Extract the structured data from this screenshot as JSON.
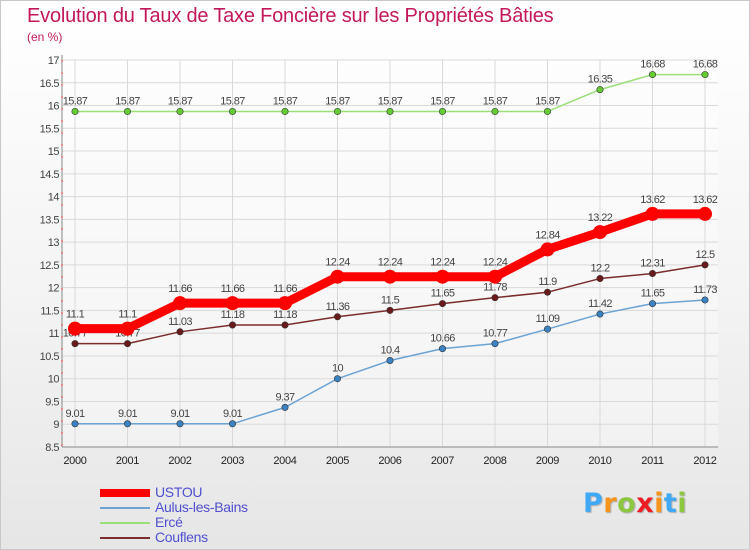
{
  "chart_data": {
    "type": "line",
    "title": "Evolution du Taux de Taxe Foncière sur les Propriétés Bâties",
    "subtitle": "(en %)",
    "x": [
      "2000",
      "2001",
      "2002",
      "2003",
      "2004",
      "2005",
      "2006",
      "2007",
      "2008",
      "2009",
      "2010",
      "2011",
      "2012"
    ],
    "ylim": [
      8.5,
      17
    ],
    "yticks": [
      "8.5",
      "9",
      "9.5",
      "10",
      "10.5",
      "11",
      "11.5",
      "12",
      "12.5",
      "13",
      "13.5",
      "14",
      "14.5",
      "15",
      "15.5",
      "16",
      "16.5",
      "17"
    ],
    "grid": true,
    "legend_position": "bottom-left",
    "series": [
      {
        "name": "USTOU",
        "color": "#ff0000",
        "values": [
          11.1,
          11.1,
          11.66,
          11.66,
          11.66,
          12.24,
          12.24,
          12.24,
          12.24,
          12.84,
          13.22,
          13.62,
          13.62
        ],
        "labels": [
          "11.1",
          "11.1",
          "11.66",
          "11.66",
          "11.66",
          "12.24",
          "12.24",
          "12.24",
          "12.24",
          "12.84",
          "13.22",
          "13.62",
          "13.62"
        ]
      },
      {
        "name": "Aulus-les-Bains",
        "color": "#6aa3d4",
        "point_color": "#3b82c4",
        "values": [
          9.01,
          9.01,
          9.01,
          9.01,
          9.37,
          10,
          10.4,
          10.66,
          10.77,
          11.09,
          11.42,
          11.65,
          11.73
        ],
        "labels": [
          "9.01",
          "9.01",
          "9.01",
          "9.01",
          "9.37",
          "10",
          "10.4",
          "10.66",
          "10.77",
          "11.09",
          "11.42",
          "11.65",
          "11.73"
        ]
      },
      {
        "name": "Ercé",
        "color": "#99e07a",
        "point_color": "#66cc33",
        "values": [
          15.87,
          15.87,
          15.87,
          15.87,
          15.87,
          15.87,
          15.87,
          15.87,
          15.87,
          15.87,
          16.35,
          16.68,
          16.68
        ],
        "labels": [
          "15.87",
          "15.87",
          "15.87",
          "15.87",
          "15.87",
          "15.87",
          "15.87",
          "15.87",
          "15.87",
          "15.87",
          "16.35",
          "16.68",
          "16.68"
        ]
      },
      {
        "name": "Couflens",
        "color": "#7b2c2c",
        "point_color": "#6b1a1a",
        "values": [
          10.77,
          10.77,
          11.03,
          11.18,
          11.18,
          11.36,
          11.5,
          11.65,
          11.78,
          11.9,
          12.2,
          12.31,
          12.5
        ],
        "labels": [
          "10.77",
          "10.77",
          "11.03",
          "11.18",
          "11.18",
          "11.36",
          "11.5",
          "11.65",
          "11.78",
          "11.9",
          "12.2",
          "12.31",
          "12.5"
        ]
      }
    ]
  },
  "logo": {
    "letters": [
      "P",
      "r",
      "o",
      "x",
      "i",
      "t",
      "i"
    ],
    "colors": [
      "#3fa9f5",
      "#f7941d",
      "#8dc63f",
      "#ed1c24",
      "#f7941d",
      "#3fa9f5",
      "#8dc63f"
    ]
  }
}
